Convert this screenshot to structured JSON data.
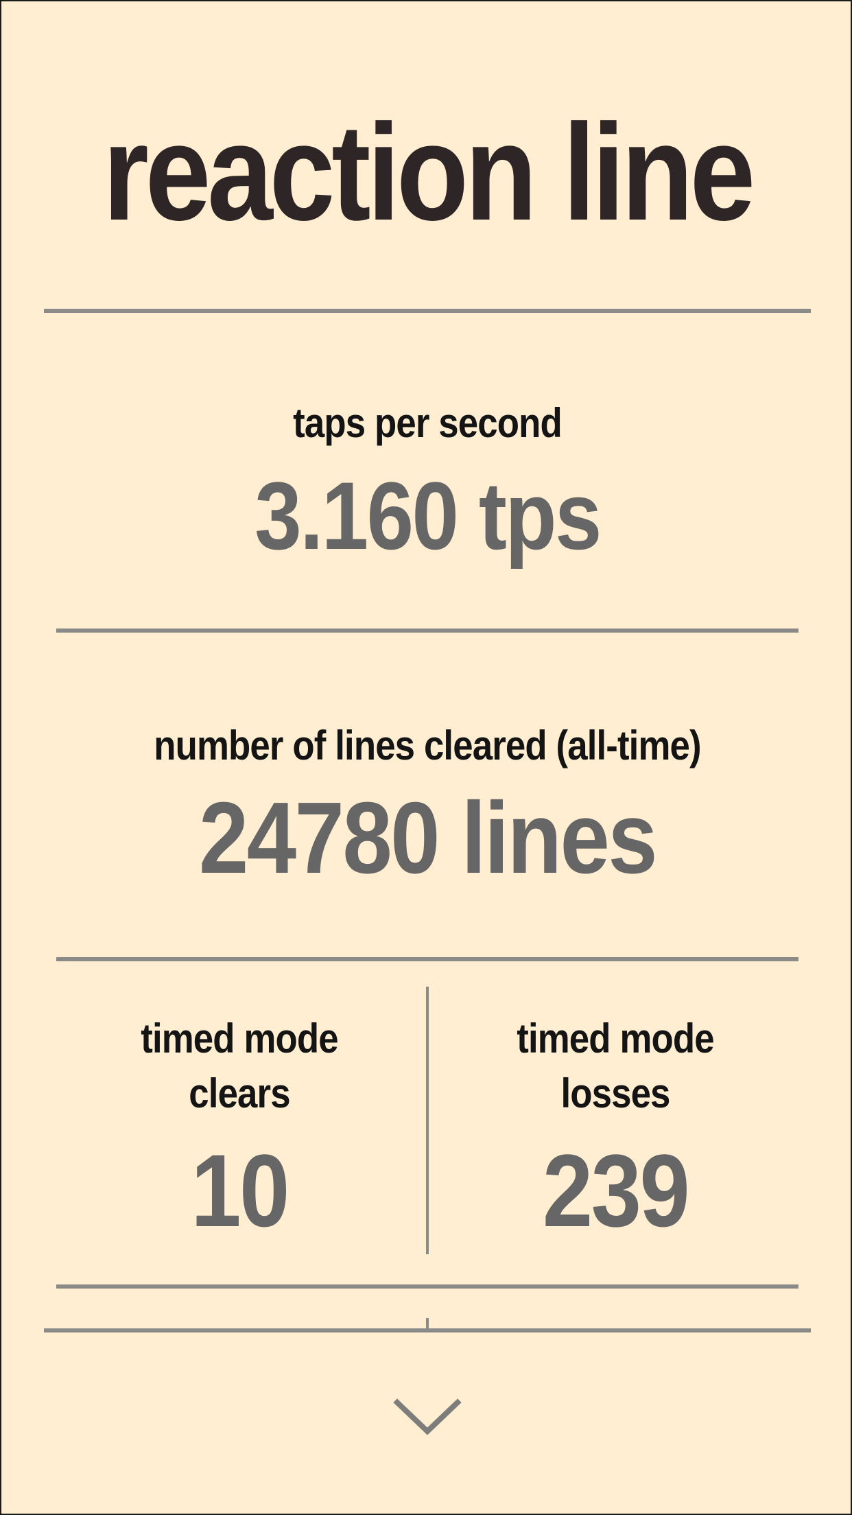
{
  "app": {
    "title": "reaction line"
  },
  "stats": {
    "taps_per_second": {
      "label": "taps per second",
      "value": "3.160 tps"
    },
    "lines_cleared": {
      "label": "number of lines cleared (all-time)",
      "value": "24780 lines"
    },
    "timed_clears": {
      "label_line1": "timed mode",
      "label_line2": "clears",
      "value": "10"
    },
    "timed_losses": {
      "label_line1": "timed mode",
      "label_line2": "losses",
      "value": "239"
    }
  },
  "navigation": {
    "scroll_icon": "chevron-down-icon"
  },
  "colors": {
    "background": "#FFEED1",
    "title": "#2E2526",
    "label": "#141414",
    "value": "#666666",
    "divider": "#8A8A88"
  }
}
